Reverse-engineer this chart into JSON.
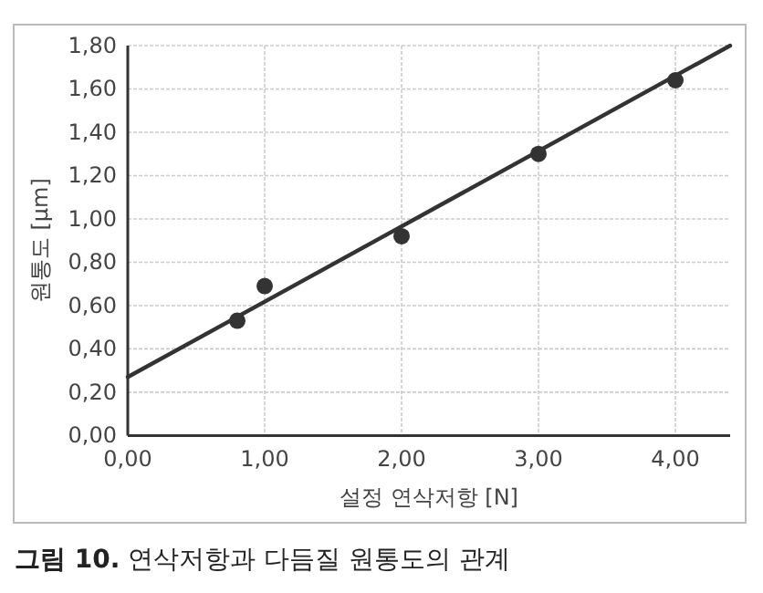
{
  "chart_data": {
    "type": "scatter",
    "title": "**그림 10.** 연삭저항과 다듬질 원통도의 관계",
    "xlabel": "설정 연삭저항 [N]",
    "ylabel": "원통도 [μm]",
    "xlim": [
      0,
      4.4
    ],
    "ylim": [
      0,
      1.8
    ],
    "xticks": [
      {
        "value": 0,
        "label": "0,00"
      },
      {
        "value": 1,
        "label": "1,00"
      },
      {
        "value": 2,
        "label": "2,00"
      },
      {
        "value": 3,
        "label": "3,00"
      },
      {
        "value": 4,
        "label": "4,00"
      }
    ],
    "yticks": [
      {
        "value": 0,
        "label": "0,00"
      },
      {
        "value": 0.2,
        "label": "0,20"
      },
      {
        "value": 0.4,
        "label": "0,40"
      },
      {
        "value": 0.6,
        "label": "0,60"
      },
      {
        "value": 0.8,
        "label": "0,80"
      },
      {
        "value": 1,
        "label": "1,00"
      },
      {
        "value": 1.2,
        "label": "1,20"
      },
      {
        "value": 1.4,
        "label": "1,40"
      },
      {
        "value": 1.6,
        "label": "1,60"
      },
      {
        "value": 1.8,
        "label": "1,80"
      }
    ],
    "grid": true,
    "marker": "circle",
    "series": [
      {
        "color": "#333333",
        "x": [
          0.8,
          1,
          2,
          3,
          4
        ],
        "values": [
          0.53,
          0.69,
          0.92,
          1.3,
          1.64
        ]
      },
      {
        "type": "line",
        "color": "#333333",
        "marker": "none",
        "line_style": "solid",
        "x": [
          0,
          4.4
        ],
        "values": [
          0.27,
          1.8
        ]
      }
    ]
  }
}
